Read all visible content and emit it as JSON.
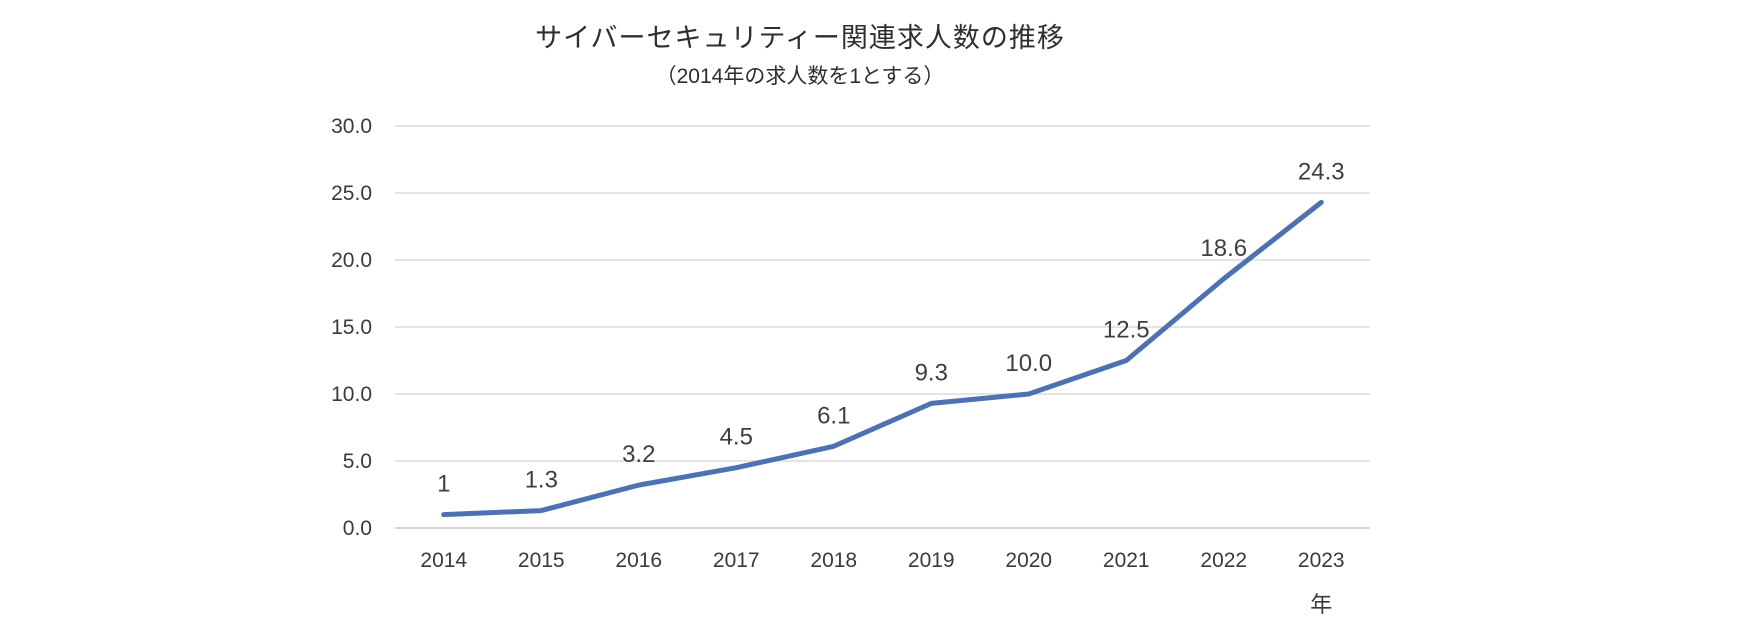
{
  "chart_data": {
    "type": "line",
    "title": "サイバーセキュリティー関連求人数の推移",
    "subtitle": "（2014年の求人数を1とする）",
    "categories": [
      "2014",
      "2015",
      "2016",
      "2017",
      "2018",
      "2019",
      "2020",
      "2021",
      "2022",
      "2023"
    ],
    "series": [
      {
        "values": [
          1,
          1.3,
          3.2,
          4.5,
          6.1,
          9.3,
          10,
          12.5,
          18.6,
          24.3
        ],
        "data_labels": [
          "1",
          "1.3",
          "3.2",
          "4.5",
          "6.1",
          "9.3",
          "10.0",
          "12.5",
          "18.6",
          "24.3"
        ],
        "color": "#4C72B2"
      }
    ],
    "y_ticks": [
      "0.0",
      "5.0",
      "10.0",
      "15.0",
      "20.0",
      "25.0",
      "30.0"
    ],
    "ylim": [
      0,
      30
    ],
    "x_axis_unit": "年",
    "grid": true,
    "legend": "none",
    "colors": {
      "line": "#4C72B2",
      "gridline": "#dcdcdc",
      "axis_line": "#c6c6c6",
      "tick_text": "#3a3a3a",
      "data_label_text": "#3f3f3f",
      "background": "#ffffff"
    }
  }
}
